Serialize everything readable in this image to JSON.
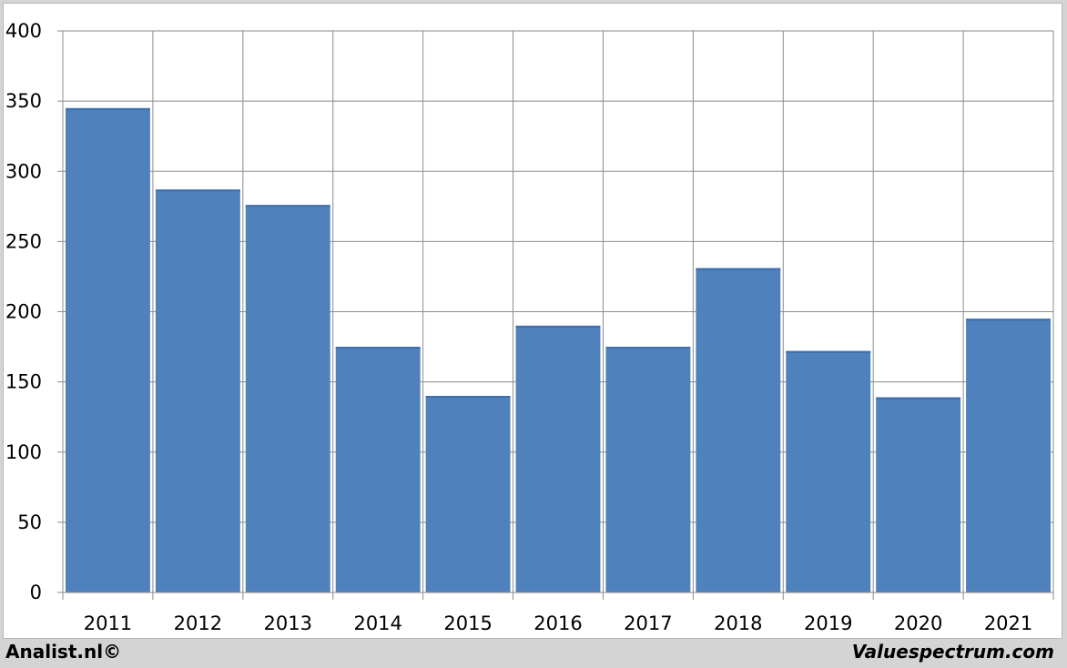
{
  "chart_data": {
    "type": "bar",
    "categories": [
      "2011",
      "2012",
      "2013",
      "2014",
      "2015",
      "2016",
      "2017",
      "2018",
      "2019",
      "2020",
      "2021"
    ],
    "values": [
      345,
      287,
      276,
      175,
      140,
      190,
      175,
      231,
      172,
      139,
      195
    ],
    "ylim": [
      0,
      400
    ],
    "yticks": [
      0,
      50,
      100,
      150,
      200,
      250,
      300,
      350,
      400
    ],
    "grid": true,
    "bar_color": "#4f81bd"
  },
  "footer": {
    "left_text": "Analist.nl©",
    "right_text": "Valuespectrum.com"
  }
}
